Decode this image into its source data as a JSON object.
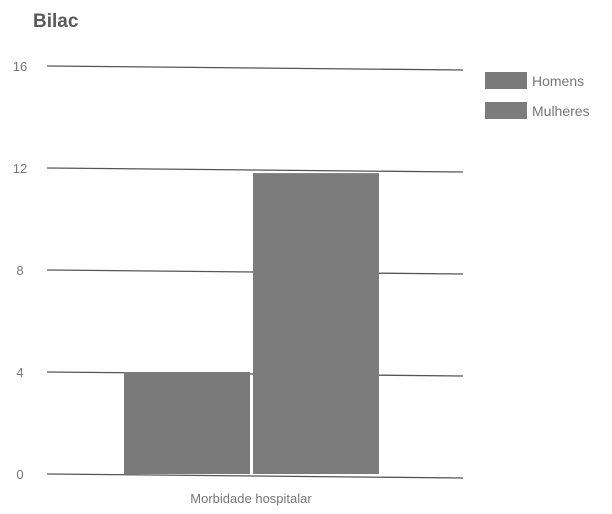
{
  "chart_data": {
    "type": "bar",
    "title": "Bilac",
    "categories": [
      "Morbidade hospitalar"
    ],
    "series": [
      {
        "name": "Homens",
        "values": [
          4
        ],
        "color": "#7a7a7a"
      },
      {
        "name": "Mulheres",
        "values": [
          11.8
        ],
        "color": "#7c7c7c"
      }
    ],
    "ylim": [
      0,
      16
    ],
    "yticks": [
      "0",
      "4",
      "8",
      "12",
      "16"
    ],
    "xlabel": "",
    "ylabel": "",
    "grid": true,
    "legend_position": "top-right"
  }
}
